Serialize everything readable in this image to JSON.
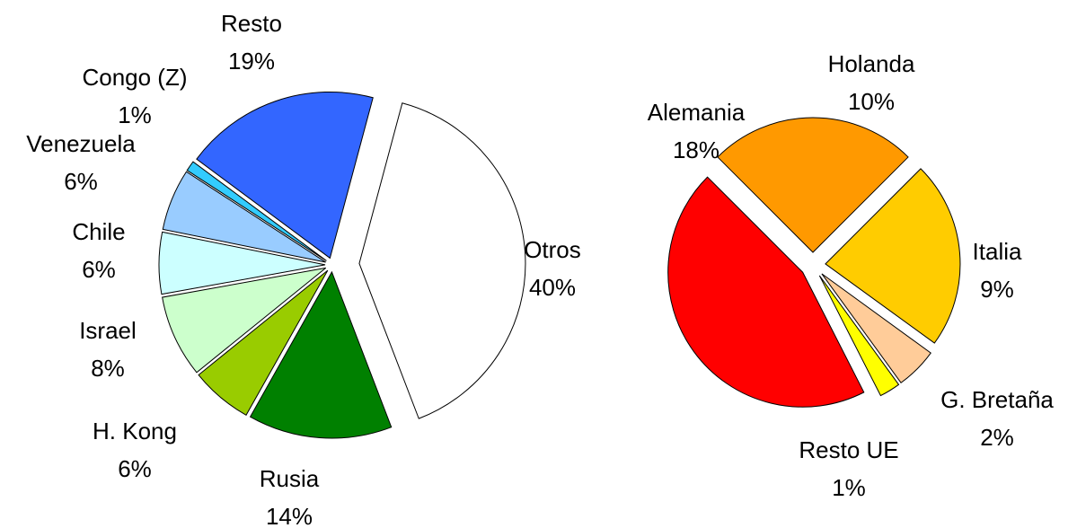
{
  "chart_data": [
    {
      "type": "pie",
      "categories": [
        "Otros",
        "Rusia",
        "H. Kong",
        "Israel",
        "Chile",
        "Venezuela",
        "Congo (Z)",
        "Resto"
      ],
      "values": [
        40,
        14,
        6,
        8,
        6,
        6,
        1,
        19
      ],
      "value_labels": [
        "40%",
        "14%",
        "6%",
        "8%",
        "6%",
        "6%",
        "1%",
        "19%"
      ],
      "colors": [
        "#ffffff",
        "#008000",
        "#99cc00",
        "#ccffcc",
        "#ccffff",
        "#99ccff",
        "#33ccff",
        "#3366ff"
      ]
    },
    {
      "type": "pie",
      "categories": [
        "Holanda",
        "Italia",
        "G. Bretaña",
        "Resto UE",
        "Alemania"
      ],
      "values": [
        10,
        9,
        2,
        1,
        18
      ],
      "value_labels": [
        "10%",
        "9%",
        "2%",
        "1%",
        "18%"
      ],
      "colors": [
        "#ff9900",
        "#ffcc00",
        "#ffcc99",
        "#ffff00",
        "#ff0000"
      ]
    }
  ]
}
